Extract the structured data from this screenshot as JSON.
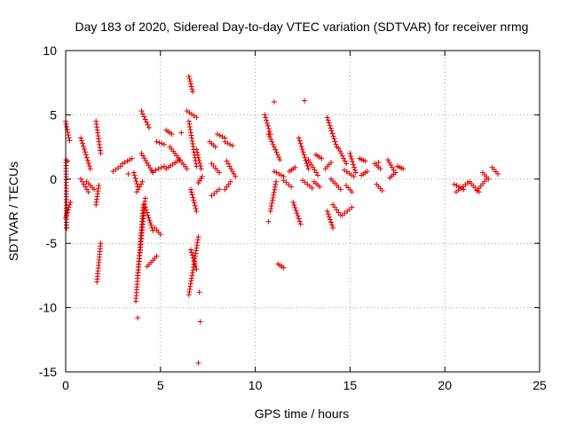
{
  "chart_data": {
    "type": "scatter",
    "title": "Day 183 of 2020, Sidereal Day-to-day VTEC variation (SDTVAR) for receiver nrmg",
    "xlabel": "GPS time / hours",
    "ylabel": "SDTVAR / TECUs",
    "xlim": [
      0,
      25
    ],
    "ylim": [
      -15,
      10
    ],
    "xticks": [
      0,
      5,
      10,
      15,
      20,
      25
    ],
    "xtick_labels": [
      "0",
      "5",
      "10",
      "15",
      "20",
      "25"
    ],
    "yticks": [
      -15,
      -10,
      -5,
      0,
      5,
      10
    ],
    "ytick_labels": [
      "-15",
      "-10",
      "-5",
      "0",
      "5",
      "10"
    ],
    "grid": true,
    "marker": "+",
    "color": "#e00000",
    "series": [
      {
        "name": "SDTVAR",
        "segments": [
          {
            "x0": 0.0,
            "x1": 0.2,
            "y0": 4.5,
            "y1": 3.0
          },
          {
            "x0": 0.0,
            "x1": 0.25,
            "y0": -3.0,
            "y1": -1.8
          },
          {
            "x0": 0.02,
            "x1": 0.05,
            "y0": 1.5,
            "y1": -3.8
          },
          {
            "x0": 0.8,
            "x1": 1.3,
            "y0": 3.2,
            "y1": 0.8
          },
          {
            "x0": 0.8,
            "x1": 1.2,
            "y0": 0.0,
            "y1": -1.0
          },
          {
            "x0": 1.1,
            "x1": 1.5,
            "y0": -0.2,
            "y1": -0.8
          },
          {
            "x0": 1.6,
            "x1": 1.85,
            "y0": 4.5,
            "y1": 2.0
          },
          {
            "x0": 1.6,
            "x1": 1.75,
            "y0": -2.0,
            "y1": -0.5
          },
          {
            "x0": 1.65,
            "x1": 1.85,
            "y0": -8.0,
            "y1": -5.0
          },
          {
            "x0": 2.5,
            "x1": 2.9,
            "y0": 0.6,
            "y1": 1.0
          },
          {
            "x0": 3.0,
            "x1": 3.5,
            "y0": 1.2,
            "y1": 1.6
          },
          {
            "x0": 3.6,
            "x1": 3.8,
            "y0": 0.5,
            "y1": -0.6
          },
          {
            "x0": 3.7,
            "x1": 4.1,
            "y0": -9.5,
            "y1": -2.0
          },
          {
            "x0": 3.75,
            "x1": 4.05,
            "y0": -1.0,
            "y1": -0.2
          },
          {
            "x0": 3.8,
            "x1": 4.2,
            "y0": -7.5,
            "y1": -1.5
          },
          {
            "x0": 4.0,
            "x1": 4.6,
            "y0": 2.0,
            "y1": 0.5
          },
          {
            "x0": 4.0,
            "x1": 4.4,
            "y0": 5.3,
            "y1": 4.0
          },
          {
            "x0": 4.2,
            "x1": 4.6,
            "y0": -2.2,
            "y1": -4.0
          },
          {
            "x0": 4.3,
            "x1": 4.8,
            "y0": -6.8,
            "y1": -6.0
          },
          {
            "x0": 4.6,
            "x1": 5.2,
            "y0": 0.6,
            "y1": 1.0
          },
          {
            "x0": 4.7,
            "x1": 5.0,
            "y0": -3.8,
            "y1": -4.3
          },
          {
            "x0": 4.8,
            "x1": 5.2,
            "y0": 2.9,
            "y1": 2.7
          },
          {
            "x0": 5.3,
            "x1": 5.6,
            "y0": 3.8,
            "y1": 3.5
          },
          {
            "x0": 5.3,
            "x1": 6.0,
            "y0": 0.8,
            "y1": 1.5
          },
          {
            "x0": 5.5,
            "x1": 6.4,
            "y0": 2.5,
            "y1": 0.8
          },
          {
            "x0": 6.4,
            "x1": 6.9,
            "y0": 5.3,
            "y1": 4.8
          },
          {
            "x0": 6.5,
            "x1": 6.7,
            "y0": 8.0,
            "y1": 6.8
          },
          {
            "x0": 6.5,
            "x1": 6.9,
            "y0": 4.5,
            "y1": 1.0
          },
          {
            "x0": 6.6,
            "x1": 6.9,
            "y0": -0.8,
            "y1": -2.5
          },
          {
            "x0": 6.5,
            "x1": 7.0,
            "y0": -9.0,
            "y1": -4.5
          },
          {
            "x0": 6.6,
            "x1": 6.9,
            "y0": -5.5,
            "y1": -7.0
          },
          {
            "x0": 6.9,
            "x1": 7.15,
            "y0": 2.3,
            "y1": 0.8
          },
          {
            "x0": 7.0,
            "x1": 7.2,
            "y0": -0.3,
            "y1": 0.2
          },
          {
            "x0": 7.6,
            "x1": 7.9,
            "y0": 2.9,
            "y1": 2.5
          },
          {
            "x0": 7.7,
            "x1": 8.1,
            "y0": 1.2,
            "y1": 0.5
          },
          {
            "x0": 7.7,
            "x1": 8.1,
            "y0": -1.3,
            "y1": -0.8
          },
          {
            "x0": 8.0,
            "x1": 8.4,
            "y0": 3.5,
            "y1": 3.2
          },
          {
            "x0": 8.4,
            "x1": 8.8,
            "y0": 2.9,
            "y1": 2.6
          },
          {
            "x0": 8.4,
            "x1": 8.7,
            "y0": -0.8,
            "y1": -0.2
          },
          {
            "x0": 8.5,
            "x1": 8.95,
            "y0": 1.4,
            "y1": 0.2
          },
          {
            "x0": 10.5,
            "x1": 10.8,
            "y0": 5.0,
            "y1": 3.5
          },
          {
            "x0": 10.7,
            "x1": 11.3,
            "y0": 3.5,
            "y1": 1.5
          },
          {
            "x0": 10.8,
            "x1": 11.1,
            "y0": -2.5,
            "y1": -0.2
          },
          {
            "x0": 11.0,
            "x1": 11.5,
            "y0": 0.6,
            "y1": 0.2
          },
          {
            "x0": 11.2,
            "x1": 11.5,
            "y0": -6.6,
            "y1": -6.9
          },
          {
            "x0": 11.5,
            "x1": 11.9,
            "y0": -0.1,
            "y1": -0.6
          },
          {
            "x0": 11.8,
            "x1": 12.1,
            "y0": 0.6,
            "y1": 0.9
          },
          {
            "x0": 12.0,
            "x1": 12.4,
            "y0": -1.8,
            "y1": -3.5
          },
          {
            "x0": 12.3,
            "x1": 12.8,
            "y0": 3.2,
            "y1": 0.8
          },
          {
            "x0": 12.5,
            "x1": 13.0,
            "y0": -0.1,
            "y1": -0.7
          },
          {
            "x0": 12.8,
            "x1": 13.3,
            "y0": 1.5,
            "y1": 0.3
          },
          {
            "x0": 13.1,
            "x1": 13.4,
            "y0": -0.2,
            "y1": -0.6
          },
          {
            "x0": 13.2,
            "x1": 13.5,
            "y0": 1.9,
            "y1": 1.6
          },
          {
            "x0": 13.7,
            "x1": 14.0,
            "y0": 0.8,
            "y1": 1.3
          },
          {
            "x0": 13.8,
            "x1": 14.3,
            "y0": 4.8,
            "y1": 2.5
          },
          {
            "x0": 13.8,
            "x1": 14.1,
            "y0": -2.5,
            "y1": -3.8
          },
          {
            "x0": 14.0,
            "x1": 14.5,
            "y0": 0.0,
            "y1": -0.8
          },
          {
            "x0": 14.1,
            "x1": 14.5,
            "y0": -2.0,
            "y1": -2.8
          },
          {
            "x0": 14.4,
            "x1": 14.8,
            "y0": 2.4,
            "y1": 1.2
          },
          {
            "x0": 14.6,
            "x1": 15.1,
            "y0": -2.8,
            "y1": -2.2
          },
          {
            "x0": 14.7,
            "x1": 15.2,
            "y0": 0.7,
            "y1": 0.2
          },
          {
            "x0": 14.8,
            "x1": 15.1,
            "y0": -0.5,
            "y1": -1.0
          },
          {
            "x0": 15.0,
            "x1": 15.3,
            "y0": 2.0,
            "y1": 0.5
          },
          {
            "x0": 15.5,
            "x1": 15.8,
            "y0": 1.6,
            "y1": 1.4
          },
          {
            "x0": 15.6,
            "x1": 15.9,
            "y0": 0.3,
            "y1": 0.6
          },
          {
            "x0": 16.3,
            "x1": 16.6,
            "y0": 1.2,
            "y1": 0.8
          },
          {
            "x0": 16.4,
            "x1": 16.7,
            "y0": -0.4,
            "y1": -0.9
          },
          {
            "x0": 17.0,
            "x1": 17.3,
            "y0": 1.5,
            "y1": 0.7
          },
          {
            "x0": 17.1,
            "x1": 17.4,
            "y0": 0.1,
            "y1": 0.5
          },
          {
            "x0": 17.5,
            "x1": 17.8,
            "y0": 1.0,
            "y1": 0.8
          },
          {
            "x0": 20.5,
            "x1": 21.0,
            "y0": -0.4,
            "y1": -0.8
          },
          {
            "x0": 20.6,
            "x1": 21.2,
            "y0": -1.0,
            "y1": -0.3
          },
          {
            "x0": 21.3,
            "x1": 21.8,
            "y0": -0.2,
            "y1": -1.0
          },
          {
            "x0": 21.7,
            "x1": 22.2,
            "y0": -0.9,
            "y1": 0.0
          },
          {
            "x0": 22.0,
            "x1": 22.3,
            "y0": 0.5,
            "y1": 0.0
          },
          {
            "x0": 22.5,
            "x1": 22.8,
            "y0": 0.9,
            "y1": 0.4
          }
        ],
        "outliers": [
          {
            "x": 3.8,
            "y": -10.8
          },
          {
            "x": 7.0,
            "y": -14.3
          },
          {
            "x": 7.1,
            "y": -11.1
          },
          {
            "x": 7.05,
            "y": -8.8
          },
          {
            "x": 11.0,
            "y": 6.0
          },
          {
            "x": 12.6,
            "y": 6.1
          },
          {
            "x": 10.7,
            "y": -3.3
          },
          {
            "x": 0.05,
            "y": -3.8
          },
          {
            "x": 0.1,
            "y": 1.4
          },
          {
            "x": 6.1,
            "y": 3.6
          },
          {
            "x": 3.3,
            "y": 0.4
          },
          {
            "x": 16.5,
            "y": 1.3
          }
        ]
      }
    ]
  }
}
